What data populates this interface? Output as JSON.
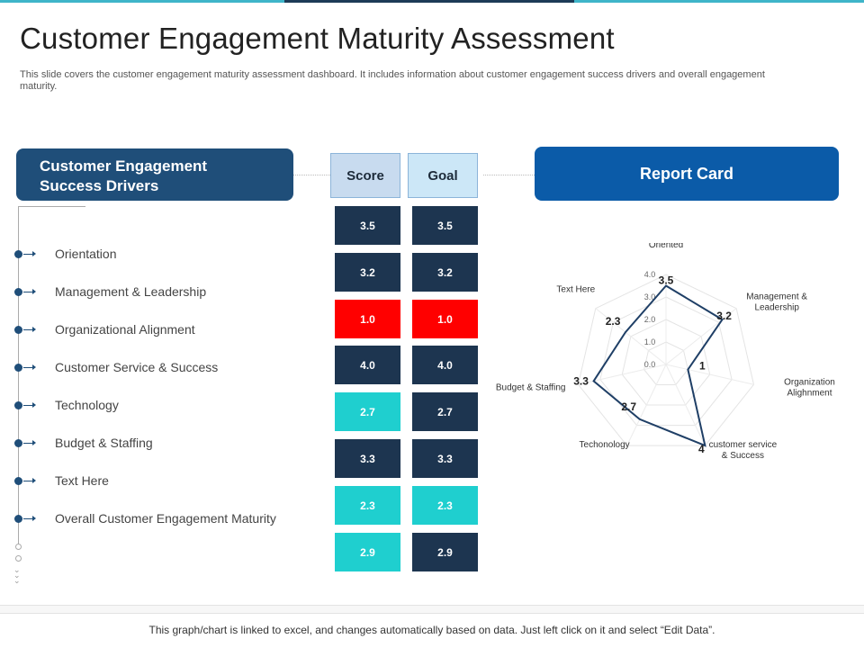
{
  "title": "Customer Engagement Maturity Assessment",
  "description": "This slide covers the customer engagement maturity assessment dashboard. It includes information about customer engagement success drivers and overall engagement maturity.",
  "drivers_header_line1": "Customer Engagement",
  "drivers_header_line2": "Success Drivers",
  "score_header": "Score",
  "goal_header": "Goal",
  "report_card_header": "Report Card",
  "drivers": [
    "Orientation",
    "Management & Leadership",
    "Organizational Alignment",
    "Customer Service & Success",
    "Technology",
    "Budget & Staffing",
    "Text Here",
    "Overall Customer Engagement Maturity"
  ],
  "scores": [
    "3.5",
    "3.2",
    "1.0",
    "4.0",
    "2.7",
    "3.3",
    "2.3",
    "2.9"
  ],
  "goals": [
    "3.5",
    "3.2",
    "1.0",
    "4.0",
    "2.7",
    "3.3",
    "2.3",
    "2.9"
  ],
  "score_colors": [
    "#1d3550",
    "#1d3550",
    "#ff0000",
    "#1d3550",
    "#1fcfcf",
    "#1d3550",
    "#1fcfcf",
    "#1fcfcf"
  ],
  "goal_colors": [
    "#1d3550",
    "#1d3550",
    "#ff0000",
    "#1d3550",
    "#1d3550",
    "#1d3550",
    "#1fcfcf",
    "#1d3550"
  ],
  "chart_data": {
    "type": "radar",
    "title": "Report Card",
    "axes": [
      {
        "label": "Oriented",
        "value": 3.5
      },
      {
        "label": "Management & Leadership",
        "value": 3.2
      },
      {
        "label": "Organization Alighnment",
        "value": 1
      },
      {
        "label": "customer service & Success",
        "value": 4
      },
      {
        "label": "Techonology",
        "value": 2.7
      },
      {
        "label": "Budget & Staffing",
        "value": 3.3
      },
      {
        "label": "Text Here",
        "value": 2.3
      }
    ],
    "value_labels": [
      "3.5",
      "3.2",
      "1",
      "4",
      "2.7",
      "3.3",
      "2.3"
    ],
    "rlim": [
      0,
      4
    ],
    "tick_labels": [
      "0.0",
      "1.0",
      "2.0",
      "3.0",
      "4.0"
    ],
    "grid": true,
    "series_color": "#1f3f66"
  },
  "footer": "This graph/chart is linked to excel, and changes automatically based on data. Just left click on it and select “Edit Data”."
}
